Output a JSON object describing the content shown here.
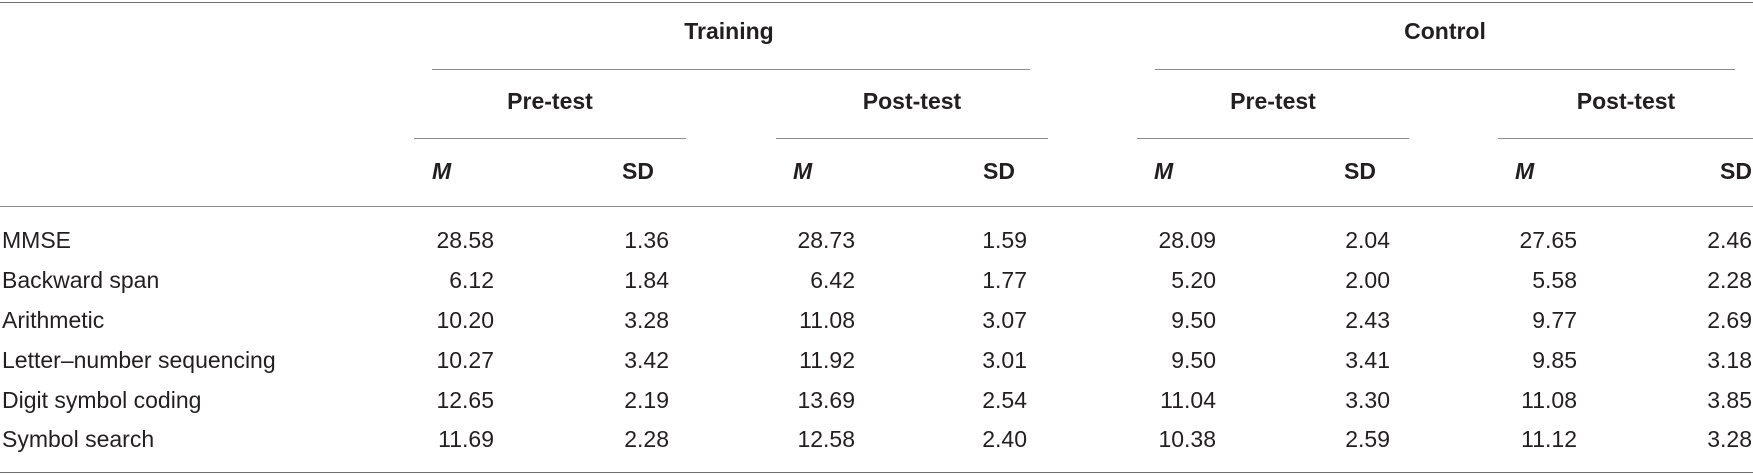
{
  "table": {
    "groups": [
      "Training",
      "Control"
    ],
    "phases": [
      "Pre-test",
      "Post-test",
      "Pre-test",
      "Post-test"
    ],
    "stat_labels": [
      "M",
      "SD",
      "M",
      "SD",
      "M",
      "SD",
      "M",
      "SD"
    ],
    "rows": [
      {
        "label": "MMSE",
        "values": [
          "28.58",
          "1.36",
          "28.73",
          "1.59",
          "28.09",
          "2.04",
          "27.65",
          "2.46"
        ]
      },
      {
        "label": "Backward span",
        "values": [
          "6.12",
          "1.84",
          "6.42",
          "1.77",
          "5.20",
          "2.00",
          "5.58",
          "2.28"
        ]
      },
      {
        "label": "Arithmetic",
        "values": [
          "10.20",
          "3.28",
          "11.08",
          "3.07",
          "9.50",
          "2.43",
          "9.77",
          "2.69"
        ]
      },
      {
        "label": "Letter–number sequencing",
        "values": [
          "10.27",
          "3.42",
          "11.92",
          "3.01",
          "9.50",
          "3.41",
          "9.85",
          "3.18"
        ]
      },
      {
        "label": "Digit symbol coding",
        "values": [
          "12.65",
          "2.19",
          "13.69",
          "2.54",
          "11.04",
          "3.30",
          "11.08",
          "3.85"
        ]
      },
      {
        "label": "Symbol search",
        "values": [
          "11.69",
          "2.28",
          "12.58",
          "2.40",
          "10.38",
          "2.59",
          "11.12",
          "3.28"
        ]
      }
    ]
  }
}
